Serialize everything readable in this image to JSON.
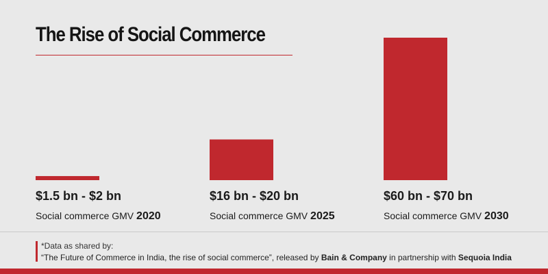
{
  "title": "The Rise of Social Commerce",
  "colors": {
    "accent": "#c0282e",
    "background": "#e9e9e9"
  },
  "chart_data": {
    "type": "bar",
    "categories": [
      "2020",
      "2025",
      "2030"
    ],
    "values": [
      2,
      20,
      70
    ],
    "range_labels": [
      "$1.5 bn - $2 bn",
      "$16 bn - $20 bn",
      "$60 bn - $70 bn"
    ],
    "category_prefix": "Social commerce GMV",
    "ylim": [
      0,
      70
    ],
    "grid": false,
    "xlabel": "",
    "ylabel": ""
  },
  "footnote": {
    "line1": "*Data as shared by:",
    "quote": "“The Future of Commerce in India, the rise of social commerce”, released by ",
    "source1": "Bain & Company",
    "middle": " in partnership with ",
    "source2": "Sequoia India"
  }
}
